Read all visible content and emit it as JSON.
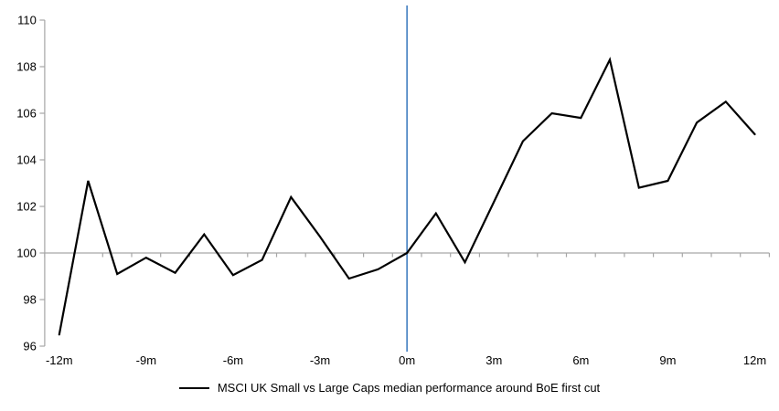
{
  "chart": {
    "legend_label": "MSCI UK Small vs Large Caps median performance around BoE first cut",
    "colors": {
      "series_line": "#000000",
      "event_line": "#4e86c4",
      "axis_line": "#a6a6a6",
      "label_text": "#000000",
      "background": "#ffffff"
    }
  },
  "chart_data": {
    "type": "line",
    "title": "",
    "x": [
      -12,
      -11,
      -10,
      -9,
      -8,
      -7,
      -6,
      -5,
      -4,
      -3,
      -2,
      -1,
      0,
      1,
      2,
      3,
      4,
      5,
      6,
      7,
      8,
      9,
      10,
      11,
      12
    ],
    "series": [
      {
        "name": "MSCI UK Small vs Large Caps median performance around BoE first cut",
        "values": [
          96.5,
          103.1,
          99.1,
          99.8,
          99.15,
          100.8,
          99.05,
          99.7,
          102.4,
          100.7,
          98.9,
          99.3,
          100.0,
          101.7,
          99.6,
          102.2,
          104.8,
          106.0,
          105.8,
          108.3,
          102.8,
          103.1,
          105.6,
          106.5,
          105.1
        ]
      }
    ],
    "ylim": [
      96,
      110
    ],
    "y_ticks": [
      96,
      98,
      100,
      102,
      104,
      106,
      108,
      110
    ],
    "y_tick_labels": [
      "96",
      "98",
      "100",
      "102",
      "104",
      "106",
      "108",
      "110"
    ],
    "x_ticks": [
      -12,
      -9,
      -6,
      -3,
      0,
      3,
      6,
      9,
      12
    ],
    "x_tick_labels": [
      "-12m",
      "-9m",
      "-6m",
      "-3m",
      "0m",
      "3m",
      "6m",
      "9m",
      "12m"
    ],
    "minor_x_tick_every_months": 1,
    "reference_lines": {
      "vertical_at_x": 0,
      "horizontal_at_y": 100
    },
    "grid": "off",
    "legend_position": "bottom-center"
  }
}
